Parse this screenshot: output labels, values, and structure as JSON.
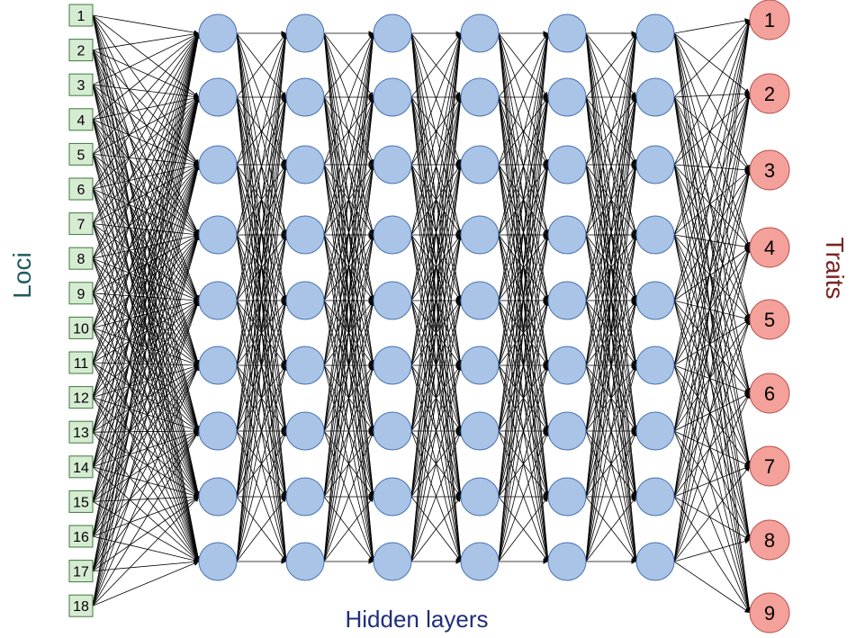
{
  "labels": {
    "left": "Loci",
    "right": "Traits",
    "bottom": "Hidden layers"
  },
  "loci": [
    "1",
    "2",
    "3",
    "4",
    "5",
    "6",
    "7",
    "8",
    "9",
    "10",
    "11",
    "12",
    "13",
    "14",
    "15",
    "16",
    "17",
    "18"
  ],
  "traits": [
    "1",
    "2",
    "3",
    "4",
    "5",
    "6",
    "7",
    "8",
    "9"
  ],
  "hidden_layer_count": 6,
  "hidden_nodes_per_layer": 9,
  "colors": {
    "loci_fill": "#d6ecd2",
    "loci_stroke": "#3b7a3b",
    "hidden_fill": "#a9c4e6",
    "hidden_stroke": "#4a72b0",
    "trait_fill": "#f4a19b",
    "trait_stroke": "#b85450",
    "left_label": "#1f5a5e",
    "right_label": "#7a2424",
    "bottom_label": "#1f2f7a",
    "edge": "#000000"
  }
}
